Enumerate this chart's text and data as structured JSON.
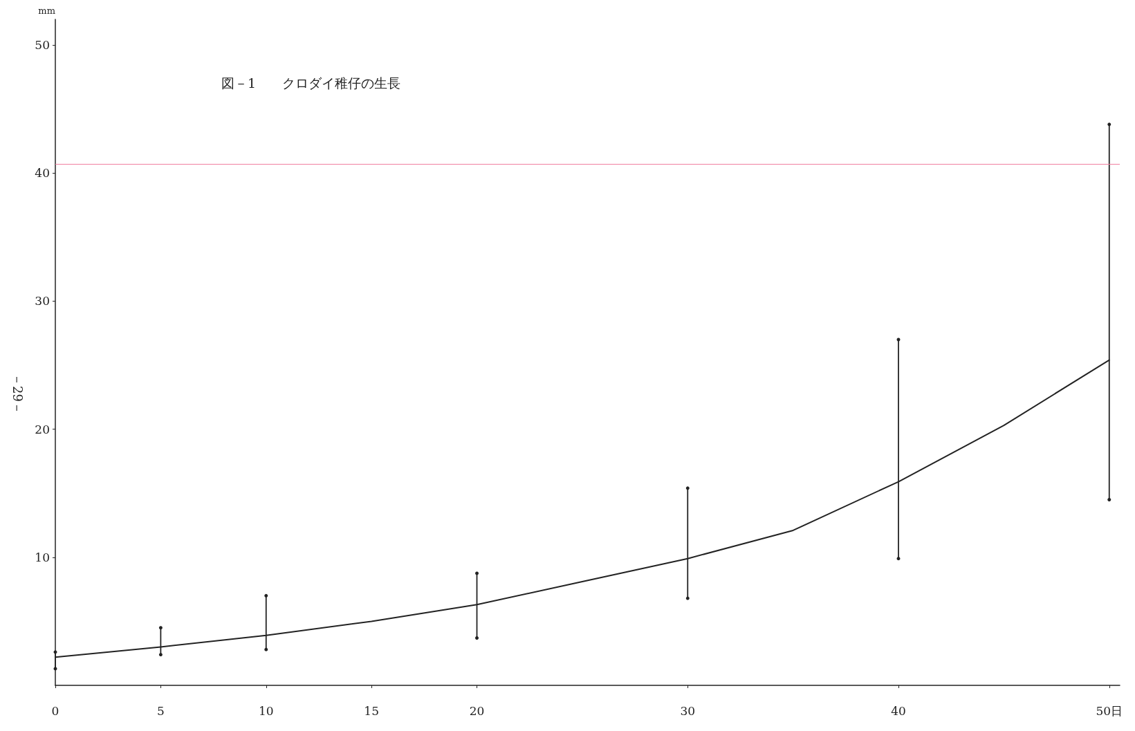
{
  "chart_data": {
    "type": "line",
    "title": "図－1　　クロダイ稚仔の生長",
    "ylabel": "mm",
    "annotations": [
      "－29－"
    ],
    "xlim": [
      0,
      50.5
    ],
    "xticks": [
      0,
      5,
      10,
      15,
      20,
      30,
      40,
      {
        "value": 50,
        "label": "50日"
      }
    ],
    "ylim": [
      0,
      52
    ],
    "yticks": [
      10,
      20,
      30,
      40,
      50
    ],
    "grid": false,
    "marker": "none",
    "line_style": "solid",
    "ref_lines": [
      {
        "axis": "y",
        "value": 40.7,
        "label": null,
        "color": "#f07fa0"
      }
    ],
    "series": [
      {
        "color": "#222222",
        "x": [
          0,
          5,
          10,
          15,
          20,
          25,
          30,
          35,
          40,
          45,
          50
        ],
        "values": [
          2.2,
          3.0,
          3.9,
          5.0,
          6.3,
          8.1,
          9.9,
          12.1,
          15.9,
          20.3,
          25.4
        ],
        "errors": [
          [
            1.3,
            2.6
          ],
          [
            2.4,
            4.5
          ],
          [
            2.8,
            7.0
          ],
          null,
          [
            3.7,
            8.75
          ],
          null,
          [
            6.8,
            15.4
          ],
          null,
          [
            9.9,
            27.0
          ],
          null,
          [
            14.5,
            43.8
          ]
        ]
      }
    ]
  }
}
